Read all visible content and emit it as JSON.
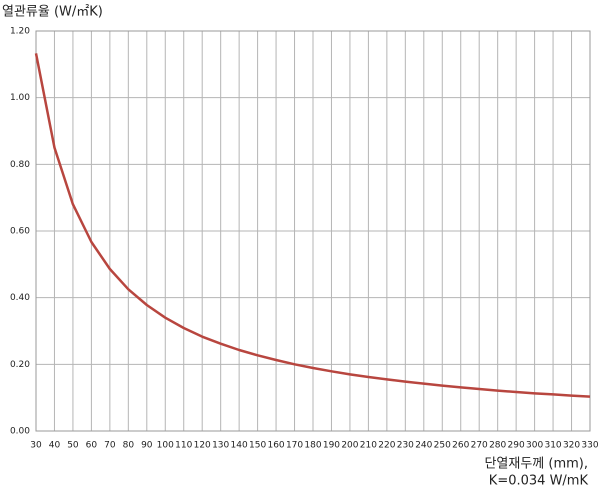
{
  "chart_data": {
    "type": "line",
    "title": "열관류율 (W/㎡K)",
    "xlabel": [
      "단열재두께 (mm),",
      "K=0.034 W/mK"
    ],
    "x": [
      30,
      40,
      50,
      60,
      70,
      80,
      90,
      100,
      110,
      120,
      130,
      140,
      150,
      160,
      170,
      180,
      190,
      200,
      210,
      220,
      230,
      240,
      250,
      260,
      270,
      280,
      290,
      300,
      310,
      320,
      330
    ],
    "series": [
      {
        "color": "#b8463f",
        "values": [
          1.133,
          0.85,
          0.68,
          0.567,
          0.486,
          0.425,
          0.378,
          0.34,
          0.309,
          0.283,
          0.262,
          0.243,
          0.227,
          0.213,
          0.2,
          0.189,
          0.179,
          0.17,
          0.162,
          0.155,
          0.148,
          0.142,
          0.136,
          0.131,
          0.126,
          0.121,
          0.117,
          0.113,
          0.11,
          0.106,
          0.103
        ]
      }
    ],
    "xlim": [
      30,
      330
    ],
    "xticks": [
      30,
      40,
      50,
      60,
      70,
      80,
      90,
      100,
      110,
      120,
      130,
      140,
      150,
      160,
      170,
      180,
      190,
      200,
      210,
      220,
      230,
      240,
      250,
      260,
      270,
      280,
      290,
      300,
      310,
      320,
      330
    ],
    "ylim": [
      0,
      1.2
    ],
    "yticks": [
      {
        "value": 0,
        "label": "0.00"
      },
      {
        "value": 0.2,
        "label": "0.20"
      },
      {
        "value": 0.4,
        "label": "0.40"
      },
      {
        "value": 0.6,
        "label": "0.60"
      },
      {
        "value": 0.8,
        "label": "0.80"
      },
      {
        "value": 1.0,
        "label": "1.00"
      },
      {
        "value": 1.2,
        "label": "1.20"
      }
    ],
    "grid": true
  }
}
